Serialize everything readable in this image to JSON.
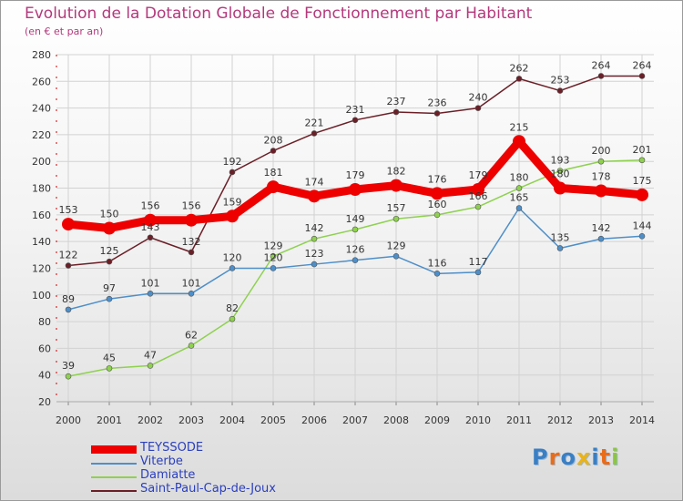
{
  "title": "Evolution de la Dotation Globale de Fonctionnement par Habitant",
  "subtitle": "(en € et par an)",
  "chart_data": {
    "type": "line",
    "title": "Evolution de la Dotation Globale de Fonctionnement par Habitant",
    "subtitle": "(en € et par an)",
    "x": [
      "2000",
      "2001",
      "2002",
      "2003",
      "2004",
      "2005",
      "2006",
      "2007",
      "2008",
      "2009",
      "2010",
      "2011",
      "2012",
      "2013",
      "2014"
    ],
    "ylim": [
      20,
      280
    ],
    "yticks": [
      20,
      40,
      60,
      80,
      100,
      120,
      140,
      160,
      180,
      200,
      220,
      240,
      260,
      280
    ],
    "grid": true,
    "legend": "bottom-left",
    "series": [
      {
        "name": "TEYSSODE",
        "color": "#ee0000",
        "values": [
          153,
          150,
          156,
          156,
          159,
          181,
          174,
          179,
          182,
          176,
          179,
          215,
          180,
          178,
          175
        ]
      },
      {
        "name": "Viterbe",
        "color": "#4d8fc9",
        "values": [
          89,
          97,
          101,
          101,
          120,
          120,
          123,
          126,
          129,
          116,
          117,
          165,
          135,
          142,
          144
        ]
      },
      {
        "name": "Damiatte",
        "color": "#8ed14e",
        "values": [
          39,
          45,
          47,
          62,
          82,
          129,
          142,
          149,
          157,
          160,
          166,
          180,
          193,
          200,
          201
        ]
      },
      {
        "name": "Saint-Paul-Cap-de-Joux",
        "color": "#6b1f27",
        "values": [
          122,
          125,
          143,
          132,
          192,
          208,
          221,
          231,
          237,
          236,
          240,
          262,
          253,
          264,
          264
        ]
      }
    ]
  },
  "logo": {
    "text": "Proxiti"
  }
}
